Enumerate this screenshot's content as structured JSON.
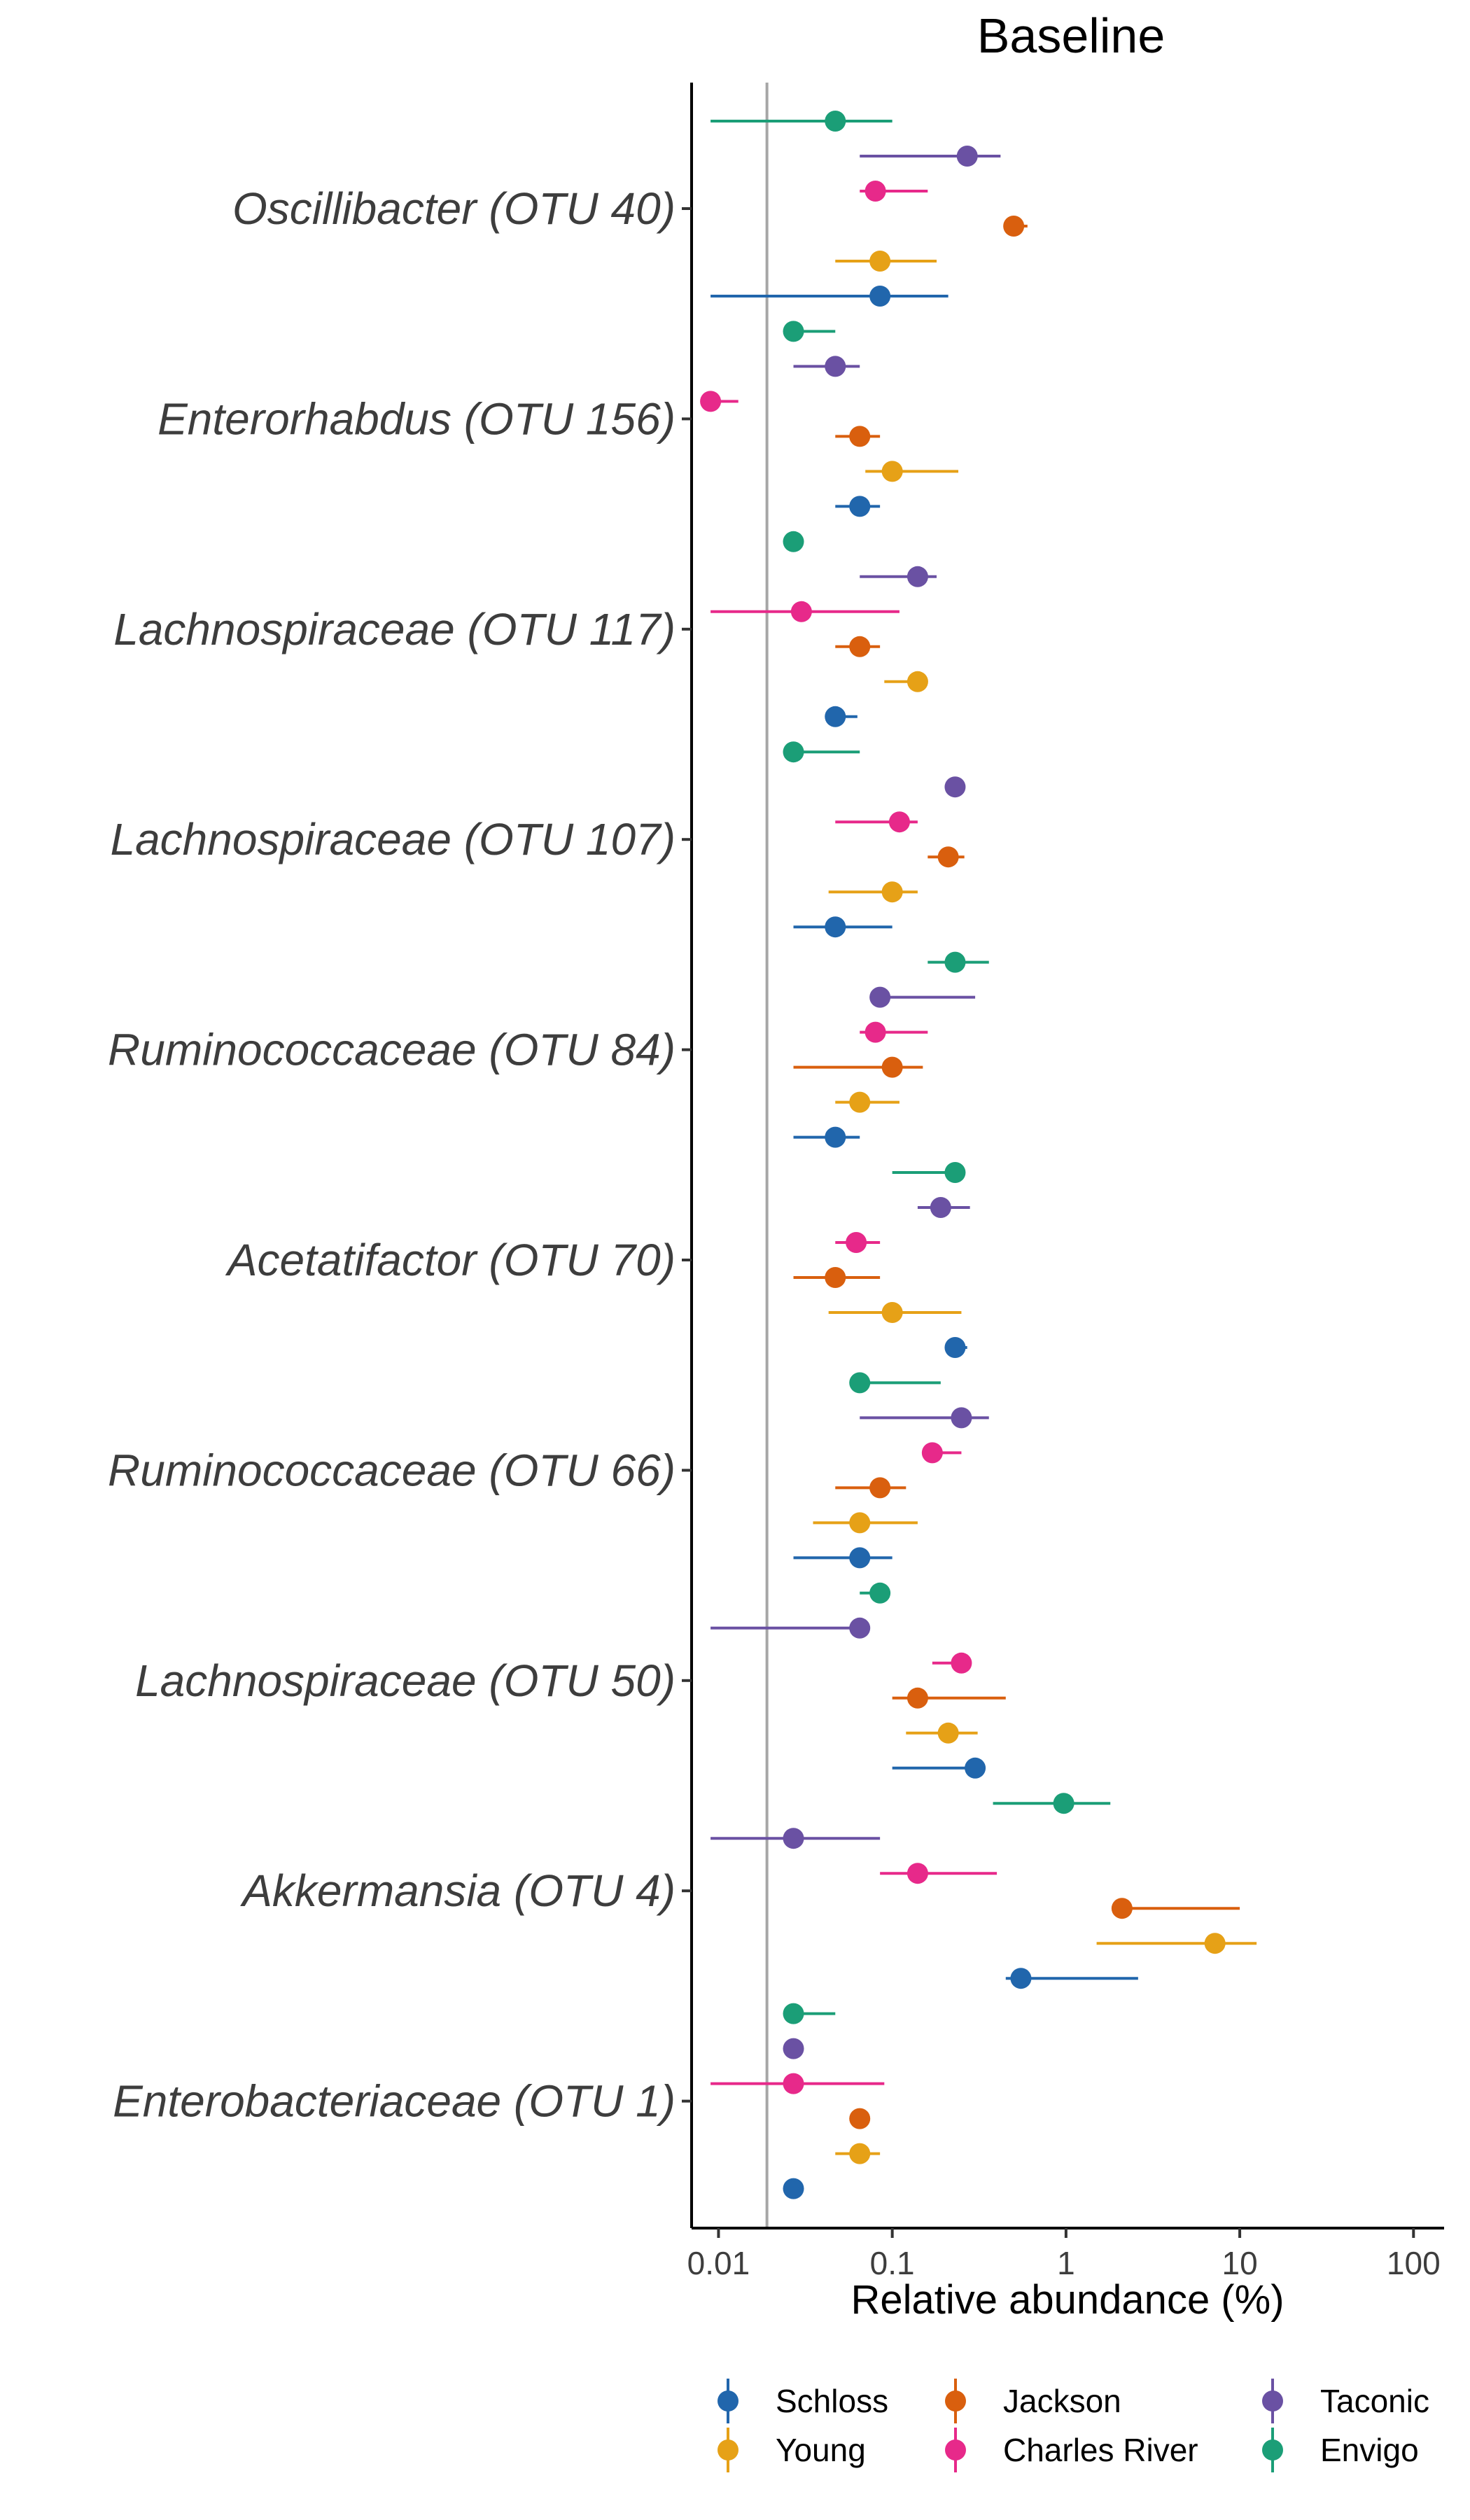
{
  "chart_data": {
    "type": "scatter",
    "title": "Baseline",
    "xlabel": "Relative abundance (%)",
    "ylabel": "",
    "x_scale": "log10",
    "xlim": [
      0.007,
      150
    ],
    "x_ticks": [
      0.01,
      0.1,
      1,
      10,
      100
    ],
    "x_tick_labels": [
      "0.01",
      "0.1",
      "1",
      "10",
      "100"
    ],
    "reference_line": 0.019,
    "grid": false,
    "legend_position": "bottom",
    "categories": [
      "Oscillibacter (OTU 40)",
      "Enterorhabdus (OTU 156)",
      "Lachnospiraceae (OTU 117)",
      "Lachnospiraceae (OTU 107)",
      "Ruminococcaceae (OTU 84)",
      "Acetatifactor (OTU 70)",
      "Ruminococcaceae (OTU 66)",
      "Lachnospiraceae (OTU 50)",
      "Akkermansia (OTU 4)",
      "Enterobacteriaceae (OTU 1)"
    ],
    "series": [
      {
        "name": "Schloss",
        "color": "#2166ac",
        "values": [
          0.085,
          0.065,
          0.047,
          0.047,
          0.047,
          0.23,
          0.065,
          0.3,
          0.55,
          0.027
        ],
        "lower": [
          0.009,
          0.047,
          0.047,
          0.027,
          0.027,
          0.23,
          0.027,
          0.1,
          0.45,
          0.027
        ],
        "upper": [
          0.21,
          0.085,
          0.063,
          0.1,
          0.065,
          0.27,
          0.1,
          0.3,
          2.6,
          0.027
        ]
      },
      {
        "name": "Young",
        "color": "#e6a117",
        "values": [
          0.085,
          0.1,
          0.14,
          0.1,
          0.065,
          0.1,
          0.065,
          0.21,
          7.2,
          0.065
        ],
        "lower": [
          0.047,
          0.07,
          0.09,
          0.043,
          0.047,
          0.043,
          0.035,
          0.12,
          1.5,
          0.047
        ],
        "upper": [
          0.18,
          0.24,
          0.16,
          0.14,
          0.11,
          0.25,
          0.14,
          0.31,
          12.5,
          0.085
        ]
      },
      {
        "name": "Jackson",
        "color": "#d95f0e",
        "values": [
          0.5,
          0.065,
          0.065,
          0.21,
          0.1,
          0.047,
          0.085,
          0.14,
          2.1,
          0.065
        ],
        "lower": [
          0.45,
          0.047,
          0.047,
          0.16,
          0.027,
          0.027,
          0.047,
          0.1,
          2.1,
          0.065
        ],
        "upper": [
          0.6,
          0.085,
          0.085,
          0.26,
          0.15,
          0.085,
          0.12,
          0.45,
          10,
          0.065
        ]
      },
      {
        "name": "Charles River",
        "color": "#e7298a",
        "values": [
          0.08,
          0.009,
          0.03,
          0.11,
          0.08,
          0.062,
          0.17,
          0.25,
          0.14,
          0.027
        ],
        "lower": [
          0.065,
          0.009,
          0.009,
          0.047,
          0.065,
          0.047,
          0.17,
          0.17,
          0.085,
          0.009
        ],
        "upper": [
          0.16,
          0.013,
          0.11,
          0.14,
          0.16,
          0.085,
          0.25,
          0.25,
          0.4,
          0.09
        ]
      },
      {
        "name": "Taconic",
        "color": "#6a51a3",
        "values": [
          0.27,
          0.047,
          0.14,
          0.23,
          0.085,
          0.19,
          0.25,
          0.065,
          0.027,
          0.027
        ],
        "lower": [
          0.065,
          0.027,
          0.065,
          0.23,
          0.085,
          0.14,
          0.065,
          0.009,
          0.009,
          0.027
        ],
        "upper": [
          0.42,
          0.065,
          0.18,
          0.23,
          0.3,
          0.28,
          0.36,
          0.065,
          0.085,
          0.027
        ]
      },
      {
        "name": "Envigo",
        "color": "#1b9e77",
        "values": [
          0.047,
          0.027,
          0.027,
          0.027,
          0.23,
          0.23,
          0.065,
          0.085,
          0.97,
          0.027
        ],
        "lower": [
          0.009,
          0.027,
          0.027,
          0.027,
          0.16,
          0.1,
          0.065,
          0.065,
          0.38,
          0.027
        ],
        "upper": [
          0.1,
          0.047,
          0.027,
          0.065,
          0.36,
          0.23,
          0.19,
          0.085,
          1.8,
          0.047
        ]
      }
    ]
  }
}
